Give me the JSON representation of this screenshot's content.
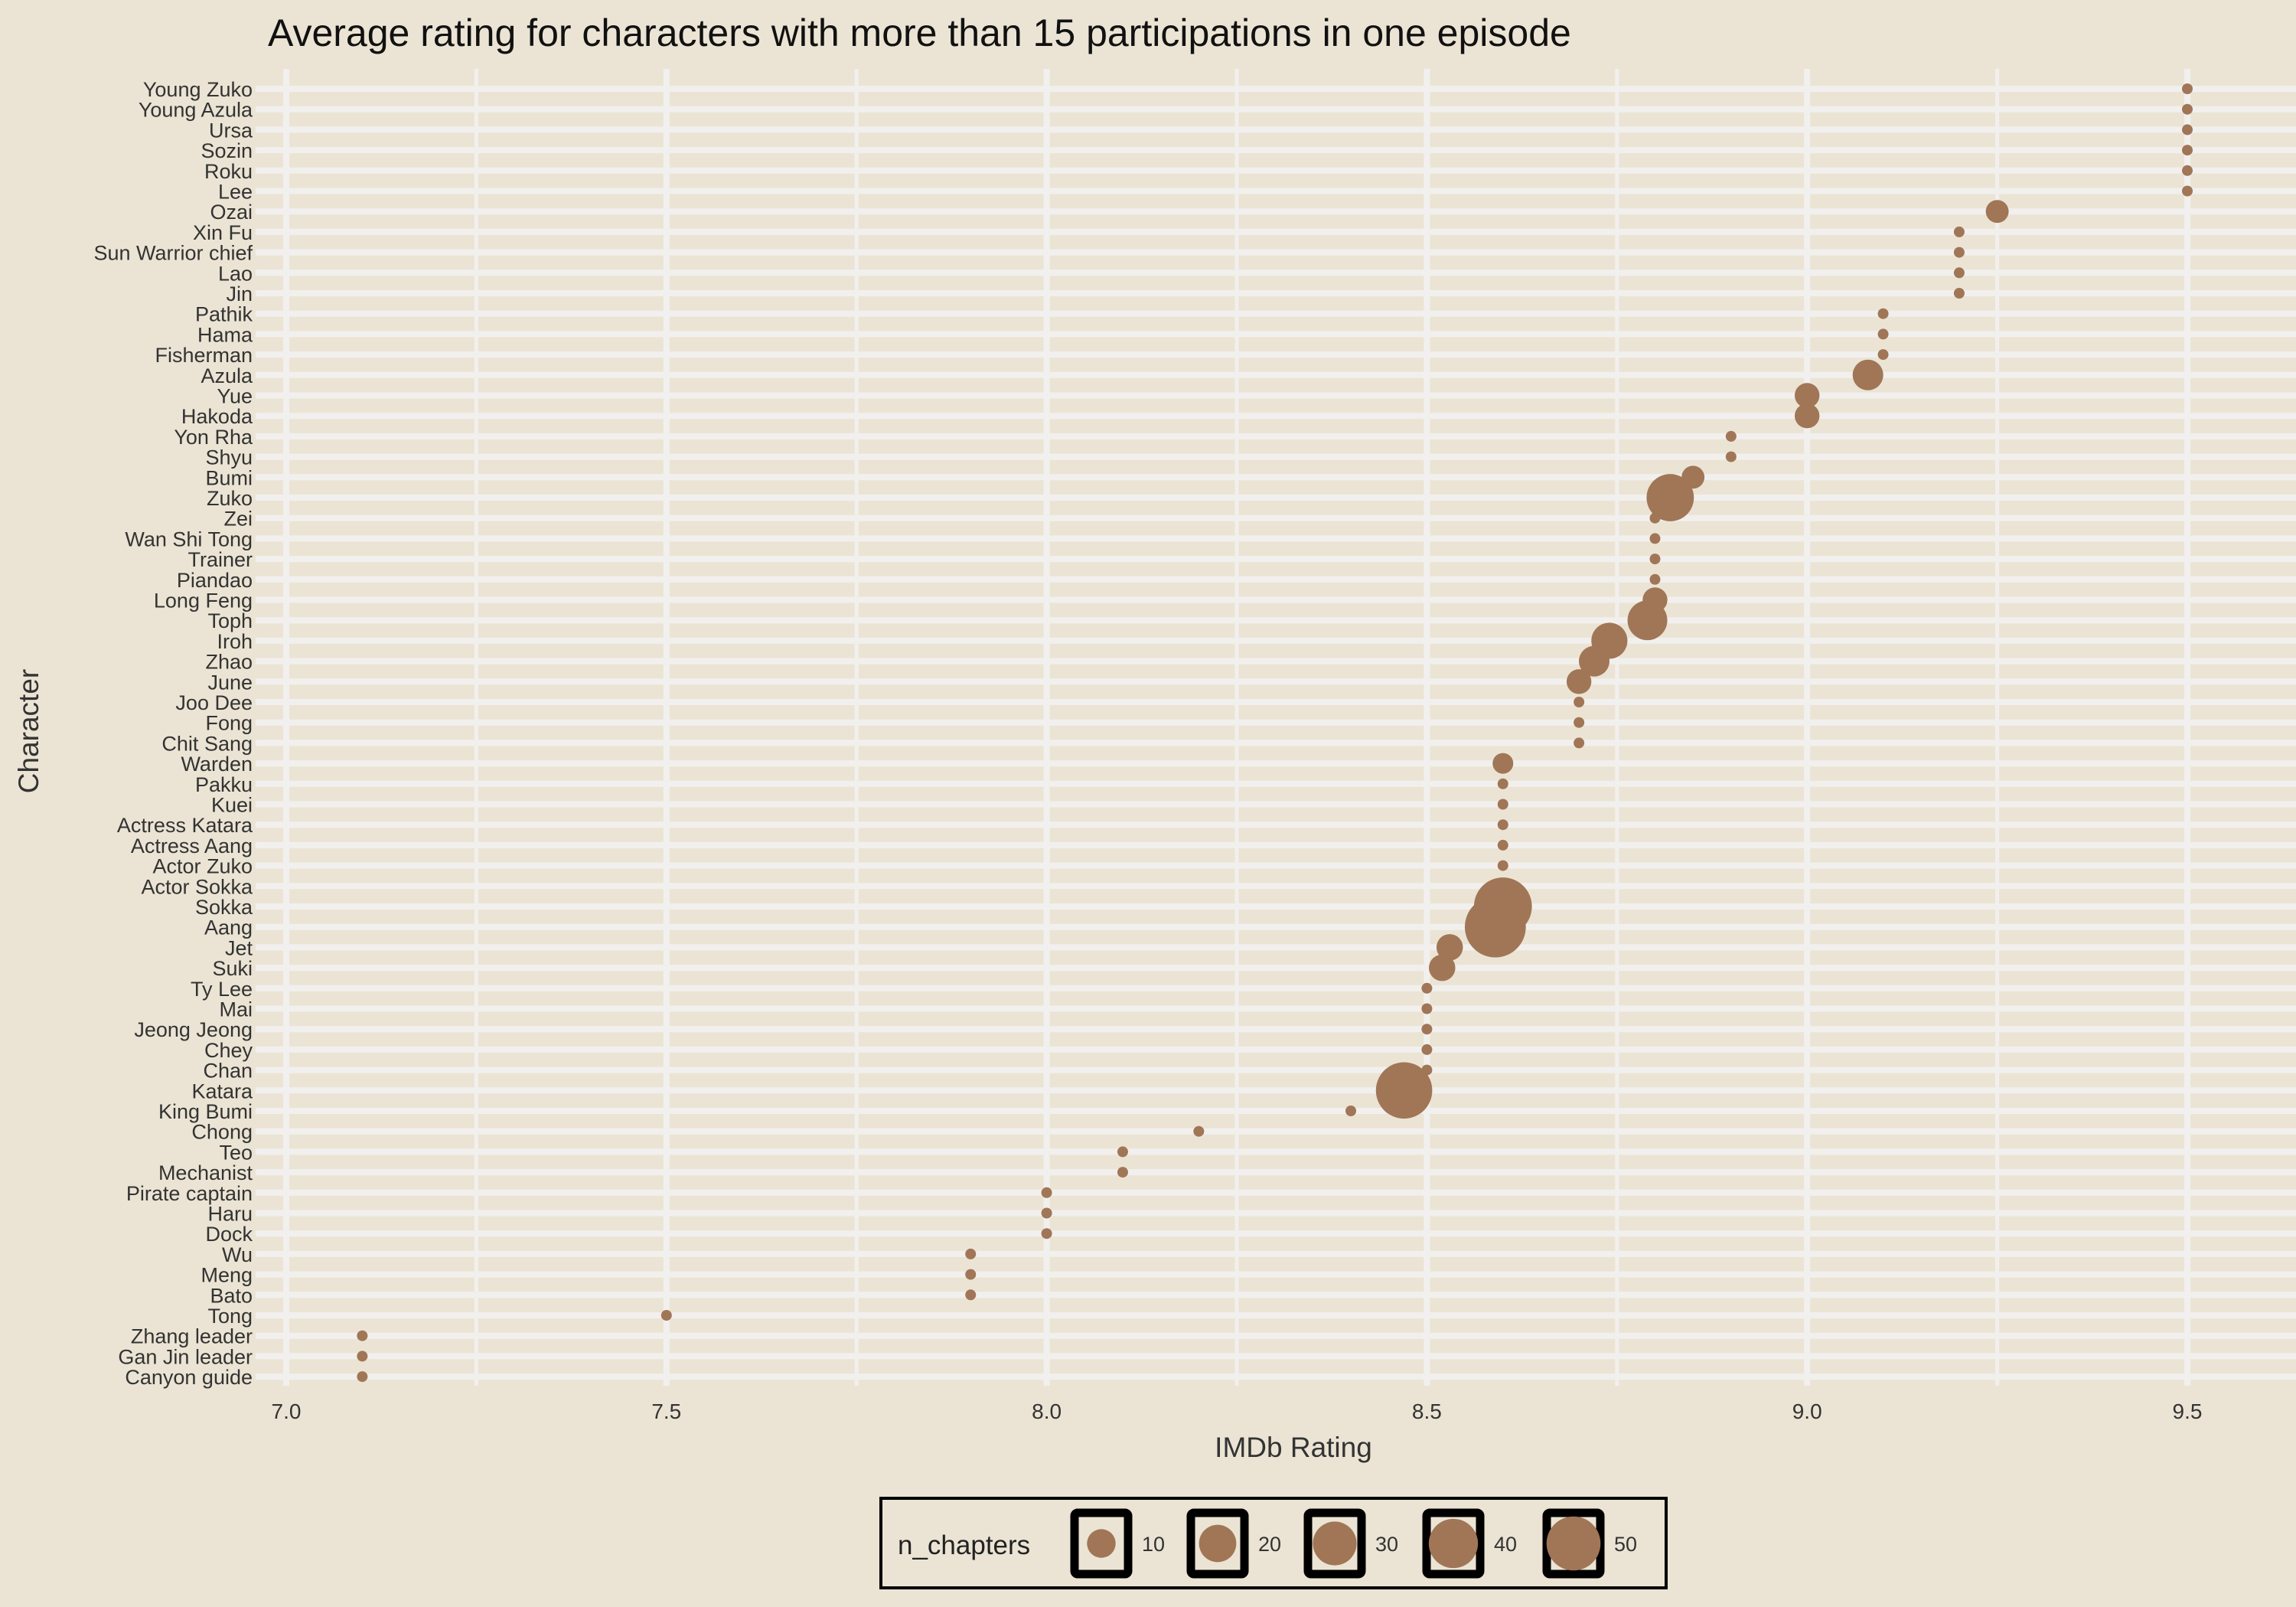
{
  "chart_data": {
    "type": "scatter",
    "title": "Average rating for characters with more than 15 participations in one episode",
    "xlabel": "IMDb Rating",
    "ylabel": "Character",
    "xlim": [
      6.98,
      9.63
    ],
    "xticks": [
      "7.0",
      "7.5",
      "8.0",
      "8.5",
      "9.0",
      "9.5"
    ],
    "grid": true,
    "point_color": "#a07657",
    "background": "#ebe4d4",
    "grid_color": "#f2f0ee",
    "legend": {
      "title": "n_chapters",
      "position": "bottom",
      "entries": [
        {
          "label": "10",
          "value": 10
        },
        {
          "label": "20",
          "value": 20
        },
        {
          "label": "30",
          "value": 30
        },
        {
          "label": "40",
          "value": 40
        },
        {
          "label": "50",
          "value": 50
        }
      ]
    },
    "points": [
      {
        "character": "Young Zuko",
        "rating": 9.5,
        "n_chapters": 1
      },
      {
        "character": "Young Azula",
        "rating": 9.5,
        "n_chapters": 1
      },
      {
        "character": "Ursa",
        "rating": 9.5,
        "n_chapters": 1
      },
      {
        "character": "Sozin",
        "rating": 9.5,
        "n_chapters": 1
      },
      {
        "character": "Roku",
        "rating": 9.5,
        "n_chapters": 1
      },
      {
        "character": "Lee",
        "rating": 9.5,
        "n_chapters": 1
      },
      {
        "character": "Ozai",
        "rating": 9.25,
        "n_chapters": 4
      },
      {
        "character": "Xin Fu",
        "rating": 9.2,
        "n_chapters": 1
      },
      {
        "character": "Sun Warrior chief",
        "rating": 9.2,
        "n_chapters": 1
      },
      {
        "character": "Lao",
        "rating": 9.2,
        "n_chapters": 1
      },
      {
        "character": "Jin",
        "rating": 9.2,
        "n_chapters": 1
      },
      {
        "character": "Pathik",
        "rating": 9.1,
        "n_chapters": 1
      },
      {
        "character": "Hama",
        "rating": 9.1,
        "n_chapters": 1
      },
      {
        "character": "Fisherman",
        "rating": 9.1,
        "n_chapters": 1
      },
      {
        "character": "Azula",
        "rating": 9.08,
        "n_chapters": 9
      },
      {
        "character": "Yue",
        "rating": 9.0,
        "n_chapters": 5
      },
      {
        "character": "Hakoda",
        "rating": 9.0,
        "n_chapters": 5
      },
      {
        "character": "Yon Rha",
        "rating": 8.9,
        "n_chapters": 1
      },
      {
        "character": "Shyu",
        "rating": 8.9,
        "n_chapters": 1
      },
      {
        "character": "Bumi",
        "rating": 8.85,
        "n_chapters": 4
      },
      {
        "character": "Zuko",
        "rating": 8.82,
        "n_chapters": 28
      },
      {
        "character": "Zei",
        "rating": 8.8,
        "n_chapters": 1
      },
      {
        "character": "Wan Shi Tong",
        "rating": 8.8,
        "n_chapters": 1
      },
      {
        "character": "Trainer",
        "rating": 8.8,
        "n_chapters": 1
      },
      {
        "character": "Piandao",
        "rating": 8.8,
        "n_chapters": 1
      },
      {
        "character": "Long Feng",
        "rating": 8.8,
        "n_chapters": 5
      },
      {
        "character": "Toph",
        "rating": 8.79,
        "n_chapters": 18
      },
      {
        "character": "Iroh",
        "rating": 8.74,
        "n_chapters": 14
      },
      {
        "character": "Zhao",
        "rating": 8.72,
        "n_chapters": 9
      },
      {
        "character": "June",
        "rating": 8.7,
        "n_chapters": 5
      },
      {
        "character": "Joo Dee",
        "rating": 8.7,
        "n_chapters": 1
      },
      {
        "character": "Fong",
        "rating": 8.7,
        "n_chapters": 1
      },
      {
        "character": "Chit Sang",
        "rating": 8.7,
        "n_chapters": 1
      },
      {
        "character": "Warden",
        "rating": 8.6,
        "n_chapters": 3
      },
      {
        "character": "Pakku",
        "rating": 8.6,
        "n_chapters": 1
      },
      {
        "character": "Kuei",
        "rating": 8.6,
        "n_chapters": 1
      },
      {
        "character": "Actress Katara",
        "rating": 8.6,
        "n_chapters": 1
      },
      {
        "character": "Actress Aang",
        "rating": 8.6,
        "n_chapters": 1
      },
      {
        "character": "Actor Zuko",
        "rating": 8.6,
        "n_chapters": 1
      },
      {
        "character": "Actor Sokka",
        "rating": 8.6,
        "n_chapters": 1
      },
      {
        "character": "Sokka",
        "rating": 8.6,
        "n_chapters": 46
      },
      {
        "character": "Aang",
        "rating": 8.59,
        "n_chapters": 52
      },
      {
        "character": "Jet",
        "rating": 8.53,
        "n_chapters": 6
      },
      {
        "character": "Suki",
        "rating": 8.52,
        "n_chapters": 6
      },
      {
        "character": "Ty Lee",
        "rating": 8.5,
        "n_chapters": 1
      },
      {
        "character": "Mai",
        "rating": 8.5,
        "n_chapters": 1
      },
      {
        "character": "Jeong Jeong",
        "rating": 8.5,
        "n_chapters": 1
      },
      {
        "character": "Chey",
        "rating": 8.5,
        "n_chapters": 1
      },
      {
        "character": "Chan",
        "rating": 8.5,
        "n_chapters": 1
      },
      {
        "character": "Katara",
        "rating": 8.47,
        "n_chapters": 43
      },
      {
        "character": "King Bumi",
        "rating": 8.4,
        "n_chapters": 1
      },
      {
        "character": "Chong",
        "rating": 8.2,
        "n_chapters": 1
      },
      {
        "character": "Teo",
        "rating": 8.1,
        "n_chapters": 1
      },
      {
        "character": "Mechanist",
        "rating": 8.1,
        "n_chapters": 1
      },
      {
        "character": "Pirate captain",
        "rating": 8.0,
        "n_chapters": 1
      },
      {
        "character": "Haru",
        "rating": 8.0,
        "n_chapters": 1
      },
      {
        "character": "Dock",
        "rating": 8.0,
        "n_chapters": 1
      },
      {
        "character": "Wu",
        "rating": 7.9,
        "n_chapters": 1
      },
      {
        "character": "Meng",
        "rating": 7.9,
        "n_chapters": 1
      },
      {
        "character": "Bato",
        "rating": 7.9,
        "n_chapters": 1
      },
      {
        "character": "Tong",
        "rating": 7.5,
        "n_chapters": 1
      },
      {
        "character": "Zhang leader",
        "rating": 7.1,
        "n_chapters": 1
      },
      {
        "character": "Gan Jin leader",
        "rating": 7.1,
        "n_chapters": 1
      },
      {
        "character": "Canyon guide",
        "rating": 7.1,
        "n_chapters": 1
      }
    ]
  }
}
